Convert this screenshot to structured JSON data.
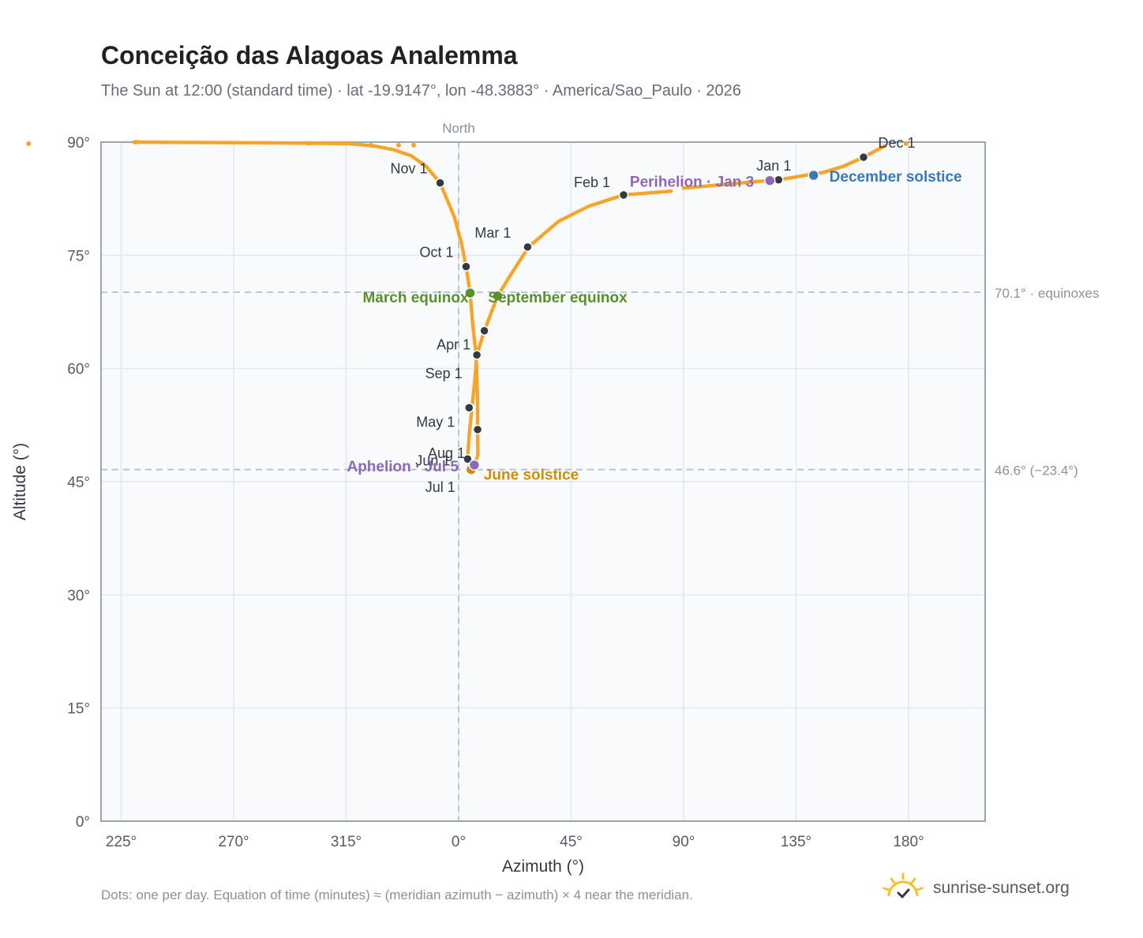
{
  "header": {
    "title": "Conceição das Alagoas Analemma",
    "subtitle": "The Sun at 12:00 (standard time) · lat -19.9147°, lon -48.3883° · America/Sao_Paulo · 2026"
  },
  "footer": {
    "note": "Dots: one per day. Equation of time (minutes) ≈ (meridian azimuth − azimuth) × 4 near the meridian.",
    "brand": "sunrise-sunset.org"
  },
  "colors": {
    "path": "#f4a52a",
    "month_dot": "#333a44",
    "equinox": "#5a8f2e",
    "june_solstice": "#c98f0e",
    "december_solstice": "#3a78b8",
    "apsis": "#8d68b5",
    "reference_line": "#b3c2d0",
    "plot_background": "#f8fafc",
    "grid": "#e3e8ee",
    "frame": "#9aa6b4",
    "brand_sun": "#f2c12e"
  },
  "chart_data": {
    "type": "scatter",
    "title": "Conceição das Alagoas Analemma",
    "xlabel": "Azimuth (°)",
    "ylabel": "Altitude (°)",
    "xlim": [
      220,
      210
    ],
    "x_axis_wraps_at_360": true,
    "ylim": [
      0,
      90
    ],
    "x_ticks": [
      "225°",
      "270°",
      "315°",
      "0°",
      "45°",
      "90°",
      "135°",
      "180°"
    ],
    "y_ticks": [
      "0°",
      "15°",
      "30°",
      "45°",
      "60°",
      "75°",
      "90°"
    ],
    "grid": true,
    "north_label": "North",
    "north_azimuth": 0,
    "reference_lines": [
      {
        "altitude": 70.1,
        "label": "70.1° · equinoxes"
      },
      {
        "altitude": 46.6,
        "label": "46.6° (−23.4°)"
      }
    ],
    "path_points": [
      [
        85.0,
        83.5
      ],
      [
        66.0,
        83.0
      ],
      [
        52.0,
        81.5
      ],
      [
        40.0,
        79.5
      ],
      [
        28.0,
        76.1
      ],
      [
        21.0,
        72.5
      ],
      [
        15.6,
        69.6
      ],
      [
        10.3,
        65.0
      ],
      [
        7.3,
        61.8
      ],
      [
        6.5,
        58.5
      ],
      [
        5.4,
        55.0
      ],
      [
        4.2,
        51.0
      ],
      [
        3.6,
        48.0
      ],
      [
        4.6,
        46.6
      ],
      [
        6.3,
        47.2
      ],
      [
        7.7,
        48.5
      ],
      [
        7.6,
        52.0
      ],
      [
        7.6,
        55.5
      ],
      [
        7.0,
        61.8
      ],
      [
        5.6,
        66.0
      ],
      [
        4.6,
        70.0
      ],
      [
        3.0,
        73.5
      ],
      [
        1.2,
        76.5
      ],
      [
        -1.6,
        80.0
      ],
      [
        -7.4,
        84.6
      ],
      [
        -13.0,
        86.8
      ],
      [
        -19.0,
        88.2
      ],
      [
        -26.0,
        89.0
      ],
      [
        -34.0,
        89.5
      ],
      [
        -44.0,
        89.8
      ],
      [
        -74.0,
        89.9
      ],
      [
        -130.0,
        90.0
      ],
      [
        170.5,
        89.5
      ],
      [
        162.0,
        88.0
      ],
      [
        154.0,
        86.8
      ],
      [
        146.0,
        86.0
      ],
      [
        128.0,
        85.0
      ],
      [
        120.0,
        84.8
      ],
      [
        110.0,
        84.5
      ],
      [
        100.0,
        84.2
      ],
      [
        90.0,
        83.9
      ]
    ],
    "month_markers": [
      {
        "label": "Jan 1",
        "azimuth": 128.0,
        "altitude": 85.0
      },
      {
        "label": "Feb 1",
        "azimuth": 66.0,
        "altitude": 83.0
      },
      {
        "label": "Mar 1",
        "azimuth": 27.6,
        "altitude": 76.1
      },
      {
        "label": "Apr 1",
        "azimuth": 7.3,
        "altitude": 61.8
      },
      {
        "label": "May 1",
        "azimuth": 4.2,
        "altitude": 54.8
      },
      {
        "label": "Jun 1",
        "azimuth": 3.6,
        "altitude": 48.0
      },
      {
        "label": "Jul 1",
        "azimuth": 5.0,
        "altitude": 46.8
      },
      {
        "label": "Aug 1",
        "azimuth": 7.6,
        "altitude": 51.9
      },
      {
        "label": "Sep 1",
        "azimuth": 10.3,
        "altitude": 65.0
      },
      {
        "label": "Oct 1",
        "azimuth": 3.0,
        "altitude": 73.5
      },
      {
        "label": "Nov 1",
        "azimuth": -7.4,
        "altitude": 84.6
      },
      {
        "label": "Dec 1",
        "azimuth": 162.0,
        "altitude": 88.0
      }
    ],
    "events": [
      {
        "label": "March equinox",
        "azimuth": 4.6,
        "altitude": 70.0,
        "kind": "equinox"
      },
      {
        "label": "September equinox",
        "azimuth": 15.6,
        "altitude": 69.6,
        "kind": "equinox"
      },
      {
        "label": "June solstice",
        "azimuth": 5.0,
        "altitude": 46.6,
        "kind": "june_solstice"
      },
      {
        "label": "December solstice",
        "azimuth": 142.0,
        "altitude": 85.6,
        "kind": "december_solstice"
      },
      {
        "label": "Aphelion · Jul 5",
        "azimuth": 6.3,
        "altitude": 47.2,
        "kind": "apsis"
      },
      {
        "label": "Perihelion · Jan 3",
        "azimuth": 124.5,
        "altitude": 84.9,
        "kind": "apsis"
      }
    ]
  }
}
